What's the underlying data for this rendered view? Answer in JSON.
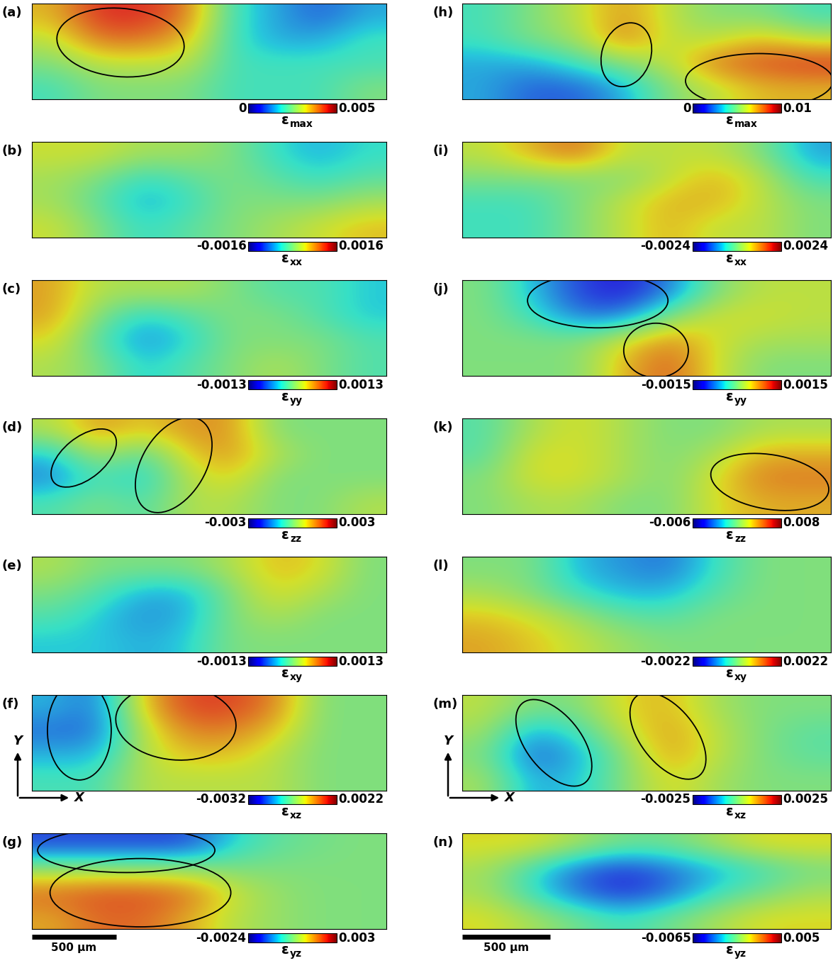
{
  "chart_data": [
    {
      "label": "(a)",
      "type": "heatmap",
      "strain": {
        "symbol": "ε",
        "subscript": "max"
      },
      "xlim": [
        0,
        2100
      ],
      "ylim": [
        0,
        580
      ],
      "tick_labels": false,
      "cells": [
        [
          0.0035,
          0.0045,
          0.0045,
          0.004,
          0.002,
          0.0015,
          0.001,
          0.0015
        ],
        [
          0.003,
          0.004,
          0.004,
          0.0035,
          0.002,
          0.0015,
          0.0015,
          0.002
        ],
        [
          0.0025,
          0.003,
          0.003,
          0.003,
          0.002,
          0.002,
          0.002,
          0.002
        ],
        [
          0.002,
          0.0025,
          0.0025,
          0.0025,
          0.002,
          0.002,
          0.002,
          0.0025
        ]
      ],
      "colorbar": {
        "range": [
          0,
          0.005
        ],
        "ticks": [
          0,
          0.005
        ]
      },
      "highlights": [
        {
          "x": 525,
          "y": 344,
          "width": 756,
          "height": 414,
          "angle": -5
        }
      ]
    },
    {
      "label": "(b)",
      "type": "heatmap",
      "strain": {
        "symbol": "ε",
        "subscript": "xx"
      },
      "xlim": [
        0,
        2100
      ],
      "ylim": [
        0,
        580
      ],
      "tick_labels": false,
      "cells": [
        [
          0.0004,
          0.0004,
          0.0002,
          0.0002,
          0,
          -0.0004,
          -0.0006,
          -0.0004
        ],
        [
          0.0002,
          0,
          -0.0004,
          -0.0002,
          0,
          -0.0002,
          -0.0004,
          -0.0002
        ],
        [
          0.0002,
          -0.0002,
          -0.0006,
          -0.0004,
          0,
          0,
          0,
          0.0002
        ],
        [
          0.0004,
          0,
          -0.0004,
          -0.0002,
          0,
          0.0002,
          0.0004,
          0.0006
        ]
      ],
      "colorbar": {
        "range": [
          -0.0016,
          0.0016
        ],
        "ticks": [
          -0.0016,
          0.0016
        ]
      },
      "highlights": []
    },
    {
      "label": "(c)",
      "type": "heatmap",
      "strain": {
        "symbol": "ε",
        "subscript": "yy"
      },
      "xlim": [
        0,
        2100
      ],
      "ylim": [
        0,
        580
      ],
      "tick_labels": false,
      "cells": [
        [
          0.0006,
          0.0002,
          0.0002,
          0.0002,
          0,
          -0.0002,
          -0.0002,
          -0.0004
        ],
        [
          0.0006,
          0,
          -0.0004,
          -0.0002,
          0,
          0,
          -0.0002,
          -0.0004
        ],
        [
          0.0004,
          -0.0002,
          -0.0006,
          -0.0004,
          0,
          0,
          0,
          -0.0002
        ],
        [
          0.0002,
          0,
          -0.0004,
          -0.0002,
          0,
          0.0002,
          0,
          -0.0002
        ]
      ],
      "colorbar": {
        "range": [
          -0.0013,
          0.0013
        ],
        "ticks": [
          -0.0013,
          0.0013
        ]
      },
      "highlights": []
    },
    {
      "label": "(d)",
      "type": "heatmap",
      "strain": {
        "symbol": "ε",
        "subscript": "zz"
      },
      "xlim": [
        0,
        2100
      ],
      "ylim": [
        0,
        580
      ],
      "tick_labels": false,
      "cells": [
        [
          0.0005,
          0.0015,
          0.001,
          0.0015,
          0.0015,
          0,
          0,
          0
        ],
        [
          -0.001,
          0.0005,
          -0.0005,
          0.001,
          0.0015,
          0.0005,
          0,
          0
        ],
        [
          -0.0015,
          -0.0005,
          -0.001,
          0.0005,
          0.001,
          0,
          0,
          0
        ],
        [
          -0.0005,
          0,
          -0.0005,
          0.0005,
          0.0005,
          0,
          0,
          0.0005
        ]
      ],
      "colorbar": {
        "range": [
          -0.003,
          0.003
        ],
        "ticks": [
          -0.003,
          0.003
        ]
      },
      "highlights": [
        {
          "x": 307,
          "y": 340,
          "width": 460,
          "height": 250,
          "angle": 40
        },
        {
          "x": 840,
          "y": 298,
          "width": 630,
          "height": 378,
          "angle": 60
        }
      ]
    },
    {
      "label": "(e)",
      "type": "heatmap",
      "strain": {
        "symbol": "ε",
        "subscript": "xy"
      },
      "xlim": [
        0,
        2100
      ],
      "ylim": [
        0,
        580
      ],
      "tick_labels": false,
      "cells": [
        [
          0.0002,
          0,
          0,
          0,
          0.0002,
          0.0005,
          0.0004,
          0
        ],
        [
          0,
          -0.0002,
          -0.0005,
          -0.0005,
          0,
          0.0004,
          0.0002,
          0
        ],
        [
          -0.0002,
          -0.0004,
          -0.0006,
          -0.0005,
          0,
          0.0002,
          0,
          0
        ],
        [
          -0.0004,
          -0.0004,
          -0.0005,
          -0.0004,
          0,
          0,
          0,
          0
        ]
      ],
      "colorbar": {
        "range": [
          -0.0013,
          0.0013
        ],
        "ticks": [
          -0.0013,
          0.0013
        ]
      },
      "highlights": []
    },
    {
      "label": "(f)",
      "type": "heatmap",
      "strain": {
        "symbol": "ε",
        "subscript": "xz"
      },
      "xlim": [
        0,
        2100
      ],
      "ylim": [
        0,
        580
      ],
      "tick_labels": false,
      "cells": [
        [
          -0.0015,
          -0.002,
          0.0005,
          0.0015,
          0.0015,
          0.001,
          -0.0005,
          -0.0005
        ],
        [
          -0.002,
          -0.002,
          0,
          0.001,
          0.001,
          0.0005,
          -0.0005,
          -0.0005
        ],
        [
          -0.0015,
          -0.0015,
          0,
          0.0005,
          0.0005,
          0,
          -0.0005,
          -0.0005
        ],
        [
          -0.001,
          -0.001,
          0,
          0,
          0,
          0,
          -0.0005,
          -0.0005
        ]
      ],
      "colorbar": {
        "range": [
          -0.0032,
          0.0022
        ],
        "ticks": [
          -0.0032,
          0.0022
        ]
      },
      "highlights": [
        {
          "x": 281,
          "y": 365,
          "width": 378,
          "height": 600,
          "angle": 0
        },
        {
          "x": 853,
          "y": 414,
          "width": 714,
          "height": 455,
          "angle": -5
        }
      ],
      "axes_indicator": {
        "x": "X",
        "y": "Y"
      }
    },
    {
      "label": "(g)",
      "type": "heatmap",
      "strain": {
        "symbol": "ε",
        "subscript": "yz"
      },
      "xlim": [
        0,
        2100
      ],
      "ylim": [
        0,
        580
      ],
      "tick_labels": false,
      "cells": [
        [
          -0.0015,
          -0.0015,
          -0.0015,
          -0.0015,
          -0.0005,
          0,
          0.0002,
          0.0003
        ],
        [
          0.0005,
          0.0005,
          0.0005,
          0.0005,
          0.0003,
          0.0003,
          0.0003,
          0.0003
        ],
        [
          0.002,
          0.0022,
          0.0022,
          0.002,
          0.001,
          0.0005,
          0.0003,
          0.0003
        ],
        [
          0.0015,
          0.002,
          0.002,
          0.0015,
          0.0008,
          0.0005,
          0.0003,
          0.0003
        ]
      ],
      "colorbar": {
        "range": [
          -0.0024,
          0.003
        ],
        "ticks": [
          -0.0024,
          0.003
        ]
      },
      "highlights": [
        {
          "x": 559,
          "y": 477,
          "width": 1050,
          "height": 270,
          "angle": 0
        },
        {
          "x": 643,
          "y": 220,
          "width": 1071,
          "height": 414,
          "angle": 0
        }
      ],
      "scale_bar": {
        "length": 500,
        "label": "500 μm"
      }
    },
    {
      "label": "(h)",
      "type": "heatmap",
      "strain": {
        "symbol": "ε",
        "subscript": "max"
      },
      "xlim": [
        0,
        2100
      ],
      "ylim": [
        0,
        580
      ],
      "tick_labels": false,
      "cells": [
        [
          0.004,
          0.005,
          0.006,
          0.0075,
          0.006,
          0.005,
          0.005,
          0.004
        ],
        [
          0.004,
          0.005,
          0.0055,
          0.008,
          0.006,
          0.006,
          0.007,
          0.006
        ],
        [
          0.003,
          0.003,
          0.004,
          0.005,
          0.006,
          0.008,
          0.0085,
          0.009
        ],
        [
          0.003,
          0.002,
          0.002,
          0.003,
          0.005,
          0.006,
          0.007,
          0.007
        ]
      ],
      "colorbar": {
        "range": [
          0,
          0.01
        ],
        "ticks": [
          0,
          0.01
        ]
      },
      "highlights": [
        {
          "x": 935,
          "y": 270,
          "width": 280,
          "height": 393,
          "angle": -15
        },
        {
          "x": 1692,
          "y": 112,
          "width": 840,
          "height": 330,
          "angle": 0
        }
      ]
    },
    {
      "label": "(i)",
      "type": "heatmap",
      "strain": {
        "symbol": "ε",
        "subscript": "xx"
      },
      "xlim": [
        0,
        2100
      ],
      "ylim": [
        0,
        580
      ],
      "tick_labels": false,
      "cells": [
        [
          0.0005,
          0.001,
          0.0015,
          0.0005,
          0.0005,
          0.0005,
          0,
          -0.001
        ],
        [
          0,
          0,
          0,
          0,
          0.0005,
          0.001,
          0.0005,
          -0.0005
        ],
        [
          -0.0005,
          -0.0005,
          0,
          0.0005,
          0.001,
          0.001,
          0.0005,
          0
        ],
        [
          -0.0005,
          -0.0005,
          0,
          0.0005,
          0.001,
          0.0005,
          0.0005,
          0
        ]
      ],
      "colorbar": {
        "range": [
          -0.0024,
          0.0024
        ],
        "ticks": [
          -0.0024,
          0.0024
        ]
      },
      "highlights": []
    },
    {
      "label": "(j)",
      "type": "heatmap",
      "strain": {
        "symbol": "ε",
        "subscript": "yy"
      },
      "xlim": [
        0,
        2100
      ],
      "ylim": [
        0,
        580
      ],
      "tick_labels": false,
      "cells": [
        [
          0,
          -0.0005,
          -0.001,
          -0.0012,
          -0.0008,
          0,
          0.0003,
          0.0003
        ],
        [
          0,
          -0.0003,
          -0.0008,
          -0.0008,
          0,
          0.0004,
          0.0004,
          0.0003
        ],
        [
          0,
          0,
          0,
          0.0004,
          0.0008,
          0.0004,
          0.0002,
          0.0002
        ],
        [
          0,
          0,
          0,
          0.0006,
          0.001,
          0.0004,
          0,
          0
        ]
      ],
      "colorbar": {
        "range": [
          -0.0015,
          0.0015
        ],
        "ticks": [
          -0.0015,
          0.0015
        ]
      },
      "highlights": [
        {
          "x": 772,
          "y": 456,
          "width": 800,
          "height": 330,
          "angle": 0
        },
        {
          "x": 1104,
          "y": 154,
          "width": 368,
          "height": 330,
          "angle": 0
        }
      ]
    },
    {
      "label": "(k)",
      "type": "heatmap",
      "strain": {
        "symbol": "ε",
        "subscript": "zz"
      },
      "xlim": [
        0,
        2100
      ],
      "ylim": [
        0,
        580
      ],
      "tick_labels": false,
      "cells": [
        [
          0,
          0.002,
          0.003,
          0.002,
          0.001,
          0.001,
          0.002,
          0.002
        ],
        [
          0,
          0.003,
          0.003,
          0.002,
          0.001,
          0.002,
          0.004,
          0.004
        ],
        [
          0.001,
          0.003,
          0.003,
          0.002,
          0.001,
          0.003,
          0.005,
          0.005
        ],
        [
          0.001,
          0.002,
          0.002,
          0.001,
          0.001,
          0.003,
          0.004,
          0.004
        ]
      ],
      "colorbar": {
        "range": [
          -0.006,
          0.008
        ],
        "ticks": [
          -0.006,
          0.008
        ]
      },
      "highlights": [
        {
          "x": 1752,
          "y": 195,
          "width": 680,
          "height": 330,
          "angle": -10
        }
      ]
    },
    {
      "label": "(l)",
      "type": "heatmap",
      "strain": {
        "symbol": "ε",
        "subscript": "xy"
      },
      "xlim": [
        0,
        2100
      ],
      "ylim": [
        0,
        580
      ],
      "tick_labels": false,
      "cells": [
        [
          0,
          0,
          -0.0008,
          -0.001,
          -0.0012,
          -0.0005,
          0,
          0
        ],
        [
          0.0003,
          0,
          -0.0005,
          -0.0008,
          -0.0008,
          -0.0003,
          0,
          0
        ],
        [
          0.0008,
          0.0006,
          0.0002,
          -0.0002,
          -0.0003,
          0,
          0,
          0
        ],
        [
          0.001,
          0.0008,
          0.0005,
          0.0002,
          0,
          0,
          0,
          0
        ]
      ],
      "colorbar": {
        "range": [
          -0.0022,
          0.0022
        ],
        "ticks": [
          -0.0022,
          0.0022
        ]
      },
      "highlights": []
    },
    {
      "label": "(m)",
      "type": "heatmap",
      "strain": {
        "symbol": "ε",
        "subscript": "xz"
      },
      "xlim": [
        0,
        2100
      ],
      "ylim": [
        0,
        580
      ],
      "tick_labels": false,
      "cells": [
        [
          0.0005,
          0,
          0,
          0.0008,
          0.001,
          0.0003,
          0,
          0
        ],
        [
          0.0003,
          -0.001,
          -0.0005,
          0.0005,
          0.0012,
          0.0005,
          0,
          -0.0003
        ],
        [
          0,
          -0.0015,
          -0.001,
          0,
          0.0012,
          0.0005,
          0,
          -0.0003
        ],
        [
          0.0003,
          -0.001,
          -0.0008,
          0,
          0.0008,
          0.0003,
          0,
          0
        ]
      ],
      "colorbar": {
        "range": [
          -0.0025,
          0.0025
        ],
        "ticks": [
          -0.0025,
          0.0025
        ]
      },
      "highlights": [
        {
          "x": 522,
          "y": 290,
          "width": 600,
          "height": 320,
          "angle": -55
        },
        {
          "x": 1172,
          "y": 332,
          "width": 600,
          "height": 320,
          "angle": -55
        }
      ],
      "axes_indicator": {
        "x": "X",
        "y": "Y"
      }
    },
    {
      "label": "(n)",
      "type": "heatmap",
      "strain": {
        "symbol": "ε",
        "subscript": "yz"
      },
      "xlim": [
        0,
        2100
      ],
      "ylim": [
        0,
        580
      ],
      "tick_labels": false,
      "cells": [
        [
          0.001,
          0.001,
          0,
          -0.001,
          -0.001,
          0,
          0.001,
          0.001
        ],
        [
          0,
          -0.002,
          -0.004,
          -0.005,
          -0.004,
          -0.003,
          -0.002,
          -0.001
        ],
        [
          0,
          -0.002,
          -0.004,
          -0.005,
          -0.004,
          -0.002,
          -0.001,
          0
        ],
        [
          0.001,
          0,
          -0.001,
          -0.002,
          -0.001,
          0,
          0.001,
          0.001
        ]
      ],
      "colorbar": {
        "range": [
          -0.0065,
          0.005
        ],
        "ticks": [
          -0.0065,
          0.005
        ]
      },
      "highlights": [],
      "scale_bar": {
        "length": 500,
        "label": "500 μm"
      }
    }
  ]
}
